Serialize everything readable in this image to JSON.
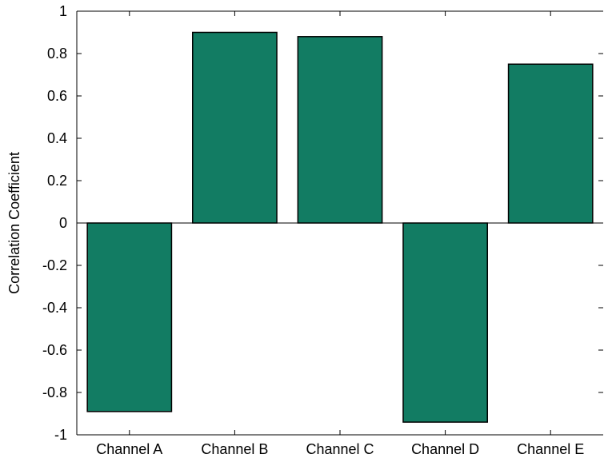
{
  "chart_data": {
    "type": "bar",
    "categories": [
      "Channel A",
      "Channel B",
      "Channel C",
      "Channel D",
      "Channel E"
    ],
    "values": [
      -0.89,
      0.9,
      0.88,
      -0.94,
      0.75
    ],
    "title": "",
    "xlabel": "",
    "ylabel": "Correlation Coefficient",
    "ylim": [
      -1,
      1
    ],
    "yticks": [
      1,
      0.8,
      0.6,
      0.4,
      0.2,
      0,
      -0.2,
      -0.4,
      -0.6,
      -0.8,
      -1
    ],
    "ytick_labels": [
      "1",
      "0.8",
      "0.6",
      "0.4",
      "0.2",
      "0",
      "-0.2",
      "-0.4",
      "-0.6",
      "-0.8",
      "-1"
    ],
    "grid": false,
    "legend": "none",
    "bar_color": "#127c63",
    "edge_color": "#000000"
  }
}
